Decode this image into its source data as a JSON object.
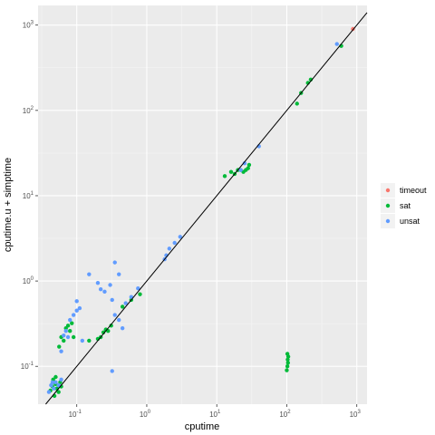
{
  "chart_data": {
    "type": "scatter",
    "title": "",
    "xlabel": "cputime",
    "ylabel": "cputime.u + simptime",
    "x_scale": "log10",
    "y_scale": "log10",
    "xlim": [
      0.028,
      1400
    ],
    "ylim": [
      0.036,
      1700
    ],
    "x_ticks": [
      {
        "value": 0.1,
        "base": "10",
        "exp": "-1"
      },
      {
        "value": 1,
        "base": "10",
        "exp": "0"
      },
      {
        "value": 10,
        "base": "10",
        "exp": "1"
      },
      {
        "value": 100,
        "base": "10",
        "exp": "2"
      },
      {
        "value": 1000,
        "base": "10",
        "exp": "3"
      }
    ],
    "y_ticks": [
      {
        "value": 0.1,
        "base": "10",
        "exp": "-1"
      },
      {
        "value": 1,
        "base": "10",
        "exp": "0"
      },
      {
        "value": 10,
        "base": "10",
        "exp": "1"
      },
      {
        "value": 100,
        "base": "10",
        "exp": "2"
      },
      {
        "value": 1000,
        "base": "10",
        "exp": "3"
      }
    ],
    "reference_line": "y = x",
    "grid": true,
    "legend_position": "right",
    "series": [
      {
        "name": "timeout",
        "color": "#F8766D",
        "points": [
          [
            880,
            900
          ]
        ]
      },
      {
        "name": "sat",
        "color": "#00BA38",
        "points": [
          [
            0.042,
            0.052
          ],
          [
            0.045,
            0.058
          ],
          [
            0.048,
            0.045
          ],
          [
            0.05,
            0.062
          ],
          [
            0.052,
            0.055
          ],
          [
            0.055,
            0.05
          ],
          [
            0.058,
            0.065
          ],
          [
            0.06,
            0.058
          ],
          [
            0.046,
            0.07
          ],
          [
            0.05,
            0.075
          ],
          [
            0.056,
            0.17
          ],
          [
            0.06,
            0.22
          ],
          [
            0.065,
            0.2
          ],
          [
            0.07,
            0.28
          ],
          [
            0.075,
            0.3
          ],
          [
            0.08,
            0.26
          ],
          [
            0.085,
            0.32
          ],
          [
            0.09,
            0.22
          ],
          [
            0.15,
            0.2
          ],
          [
            0.2,
            0.21
          ],
          [
            0.22,
            0.22
          ],
          [
            0.24,
            0.25
          ],
          [
            0.26,
            0.27
          ],
          [
            0.28,
            0.26
          ],
          [
            0.31,
            0.3
          ],
          [
            0.45,
            0.5
          ],
          [
            0.6,
            0.6
          ],
          [
            0.8,
            0.7
          ],
          [
            13,
            17
          ],
          [
            16,
            19
          ],
          [
            18,
            18
          ],
          [
            20,
            20
          ],
          [
            22,
            20
          ],
          [
            24,
            19
          ],
          [
            26,
            20
          ],
          [
            28,
            21
          ],
          [
            29,
            23
          ],
          [
            100,
            0.09
          ],
          [
            102,
            0.1
          ],
          [
            104,
            0.11
          ],
          [
            103,
            0.12
          ],
          [
            105,
            0.13
          ],
          [
            102,
            0.14
          ],
          [
            140,
            120
          ],
          [
            160,
            160
          ],
          [
            200,
            210
          ],
          [
            220,
            230
          ],
          [
            600,
            570
          ]
        ]
      },
      {
        "name": "unsat",
        "color": "#619CFF",
        "points": [
          [
            0.04,
            0.05
          ],
          [
            0.043,
            0.06
          ],
          [
            0.047,
            0.055
          ],
          [
            0.05,
            0.065
          ],
          [
            0.055,
            0.06
          ],
          [
            0.06,
            0.07
          ],
          [
            0.045,
            0.065
          ],
          [
            0.06,
            0.15
          ],
          [
            0.065,
            0.23
          ],
          [
            0.07,
            0.26
          ],
          [
            0.075,
            0.22
          ],
          [
            0.08,
            0.35
          ],
          [
            0.09,
            0.4
          ],
          [
            0.1,
            0.45
          ],
          [
            0.11,
            0.48
          ],
          [
            0.1,
            0.58
          ],
          [
            0.12,
            0.2
          ],
          [
            0.15,
            1.2
          ],
          [
            0.2,
            0.95
          ],
          [
            0.22,
            0.8
          ],
          [
            0.25,
            0.75
          ],
          [
            0.3,
            0.9
          ],
          [
            0.35,
            1.65
          ],
          [
            0.4,
            1.2
          ],
          [
            0.32,
            0.6
          ],
          [
            0.35,
            0.4
          ],
          [
            0.4,
            0.35
          ],
          [
            0.45,
            0.28
          ],
          [
            0.5,
            0.55
          ],
          [
            0.6,
            0.65
          ],
          [
            0.75,
            0.82
          ],
          [
            0.32,
            0.088
          ],
          [
            1.8,
            1.8
          ],
          [
            1.9,
            2
          ],
          [
            2.1,
            2.4
          ],
          [
            2.5,
            2.8
          ],
          [
            3,
            3.3
          ],
          [
            22,
            20
          ],
          [
            25,
            24
          ],
          [
            40,
            38
          ],
          [
            520,
            600
          ]
        ]
      }
    ]
  }
}
